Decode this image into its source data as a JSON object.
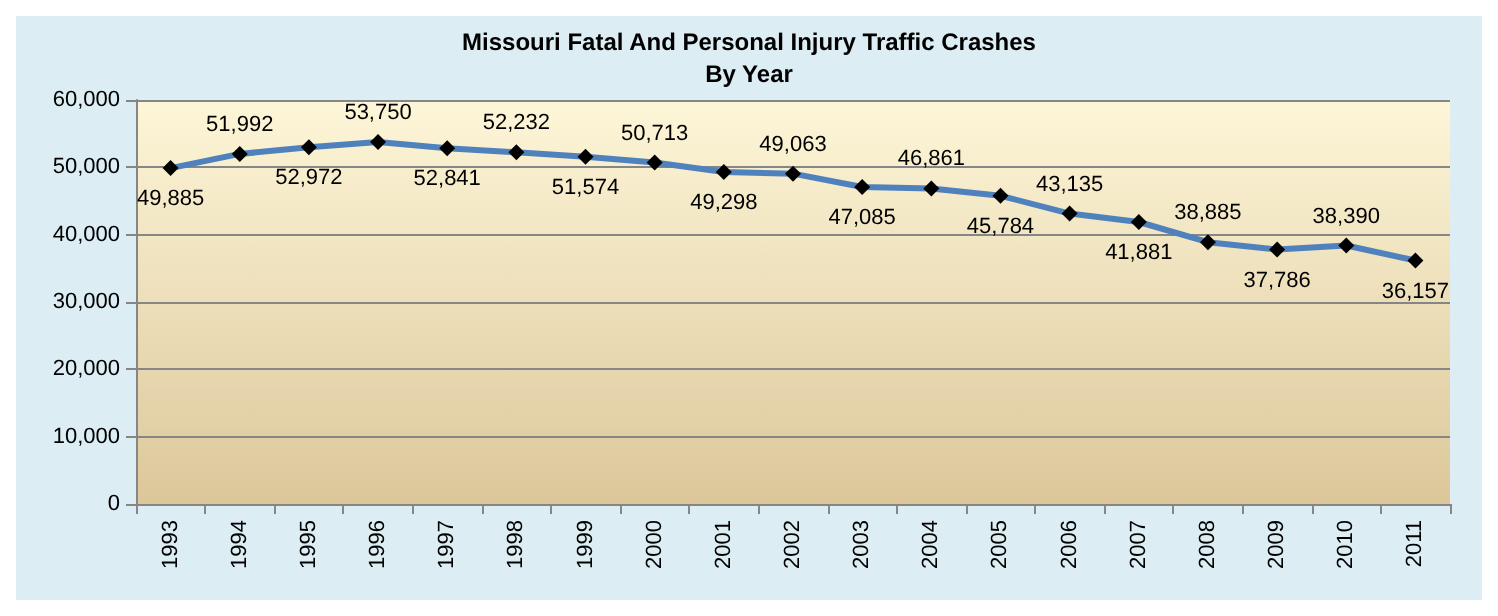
{
  "chart_data": {
    "type": "line",
    "title": "Missouri Fatal And Personal Injury Traffic Crashes",
    "subtitle": "By Year",
    "categories": [
      "1993",
      "1994",
      "1995",
      "1996",
      "1997",
      "1998",
      "1999",
      "2000",
      "2001",
      "2002",
      "2003",
      "2004",
      "2005",
      "2006",
      "2007",
      "2008",
      "2009",
      "2010",
      "2011"
    ],
    "series": [
      {
        "color": "#4f81bd",
        "values": [
          49885,
          51992,
          52972,
          53750,
          52841,
          52232,
          51574,
          50713,
          49298,
          49063,
          47085,
          46861,
          45784,
          43135,
          41881,
          38885,
          37786,
          38390,
          36157
        ],
        "value_labels": [
          "49,885",
          "51,992",
          "52,972",
          "53,750",
          "52,841",
          "52,232",
          "51,574",
          "50,713",
          "49,298",
          "49,063",
          "47,085",
          "46,861",
          "45,784",
          "43,135",
          "41,881",
          "38,885",
          "37,786",
          "38,390",
          "36,157"
        ]
      }
    ],
    "ylim": [
      0,
      60000
    ],
    "yticks": [
      {
        "value": 0,
        "label": "0"
      },
      {
        "value": 10000,
        "label": "10,000"
      },
      {
        "value": 20000,
        "label": "20,000"
      },
      {
        "value": 30000,
        "label": "30,000"
      },
      {
        "value": 40000,
        "label": "40,000"
      },
      {
        "value": 50000,
        "label": "50,000"
      },
      {
        "value": 60000,
        "label": "60,000"
      }
    ],
    "grid": "y",
    "marker": "diamond",
    "line_style": "solid"
  }
}
